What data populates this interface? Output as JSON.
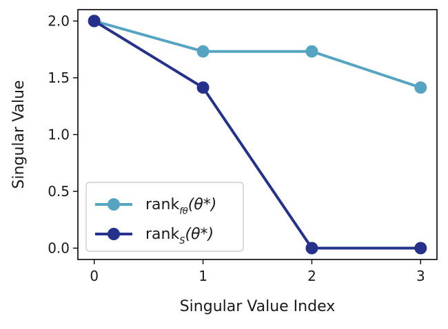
{
  "chart_data": {
    "type": "line",
    "x": [
      0,
      1,
      2,
      3
    ],
    "series": [
      {
        "name_base": "rank",
        "name_sub": "fθ",
        "name_arg": "(θ*)",
        "values": [
          2.0,
          1.732,
          1.732,
          1.414
        ],
        "color": "#56a4c2"
      },
      {
        "name_base": "rank",
        "name_sub": "S",
        "name_arg": "(θ*)",
        "values": [
          2.0,
          1.414,
          0.0,
          0.0
        ],
        "color": "#25318a"
      }
    ],
    "xlabel": "Singular Value Index",
    "ylabel": "Singular Value",
    "xticks": [
      "0",
      "1",
      "2",
      "3"
    ],
    "yticks": [
      "0.0",
      "0.5",
      "1.0",
      "1.5",
      "2.0"
    ],
    "xlim": [
      -0.15,
      3.15
    ],
    "ylim": [
      -0.1,
      2.1
    ],
    "legend_position": "lower-left",
    "grid": false
  }
}
